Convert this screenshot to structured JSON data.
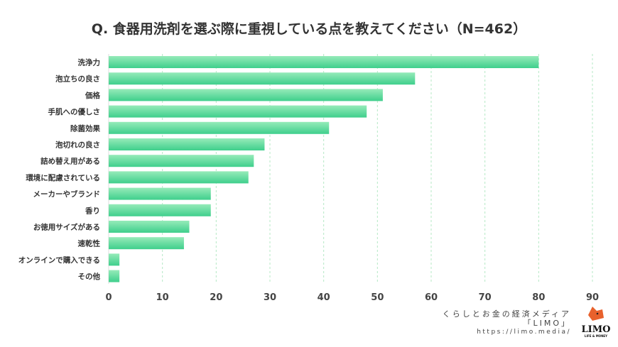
{
  "chart_data": {
    "type": "bar",
    "orientation": "horizontal",
    "title": "Q. 食器用洗剤を選ぶ際に重視している点を教えてください（N=462）",
    "categories": [
      "洗浄力",
      "泡立ちの良さ",
      "価格",
      "手肌への優しさ",
      "除菌効果",
      "泡切れの良さ",
      "詰め替え用がある",
      "環境に配慮されている",
      "メーカーやブランド",
      "香り",
      "お徳用サイズがある",
      "速乾性",
      "オンラインで購入できる",
      "その他"
    ],
    "values": [
      80,
      57,
      51,
      48,
      41,
      29,
      27,
      26,
      19,
      19,
      15,
      14,
      2,
      2
    ],
    "xlim": [
      0,
      90
    ],
    "xticks": [
      0,
      10,
      20,
      30,
      40,
      50,
      60,
      70,
      80,
      90
    ],
    "grid": true,
    "colors": {
      "bar_top": "#96ebb9",
      "bar_bottom": "#3fcf8c",
      "grid": "#b5e8c5"
    }
  },
  "credit": {
    "line1": "くらしとお金の経済メディア",
    "line2": "「LIMO」",
    "url": "https://limo.media/"
  },
  "logo": {
    "word": "LIMO",
    "sub": "LIFE & MONEY"
  }
}
